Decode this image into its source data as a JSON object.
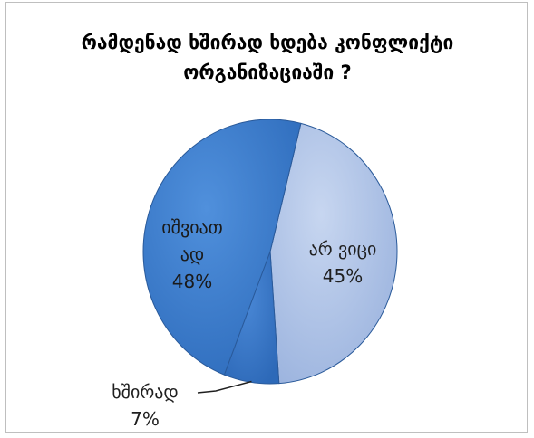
{
  "chart_data": {
    "type": "pie",
    "title_lines": [
      "რამდენად ხშირად ხდება კონფლიქტი",
      "ორგანიზაციაში ?"
    ],
    "slices": [
      {
        "label_lines": [
          "არ ვიცი"
        ],
        "value": 45,
        "value_label": "45%",
        "color": "#a9bfe4",
        "label_color": "#1f1f1f"
      },
      {
        "label_lines": [
          "ხშირად"
        ],
        "value": 7,
        "value_label": "7%",
        "color": "#3b78c8",
        "label_color": "#1f1f1f"
      },
      {
        "label_lines": [
          "იშვიათ",
          "ად"
        ],
        "value": 48,
        "value_label": "48%",
        "color": "#3a7bd0",
        "label_color": "#1a1a1a"
      }
    ],
    "legend": "none"
  }
}
